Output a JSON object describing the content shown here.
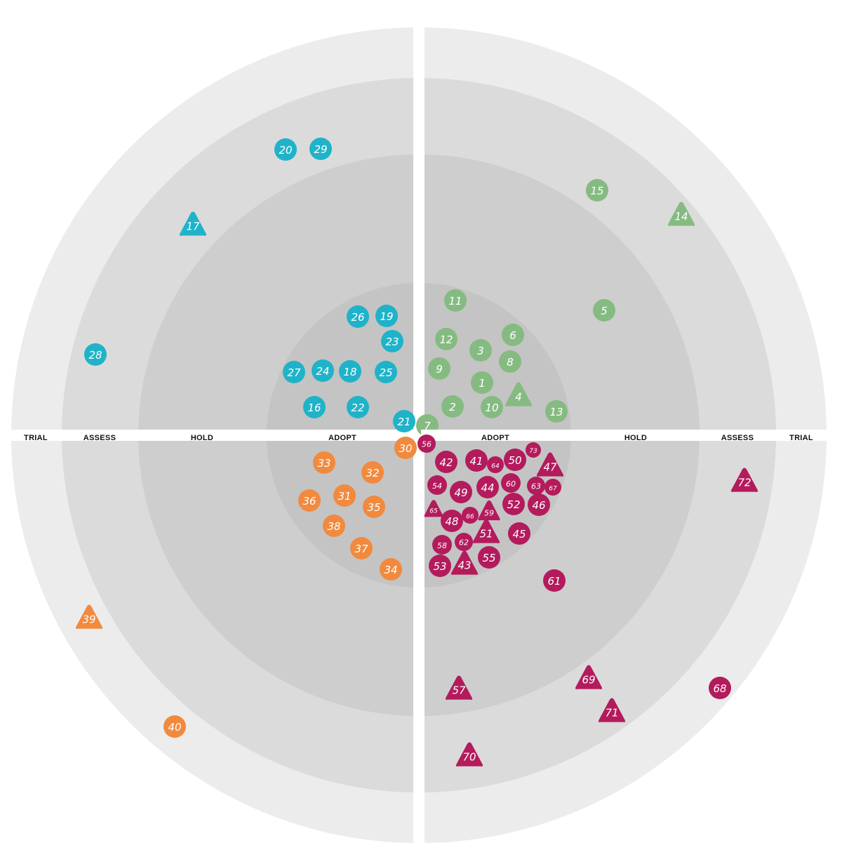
{
  "rings": [
    "ADOPT",
    "HOLD",
    "ASSESS",
    "TRIAL"
  ],
  "ring_colors": [
    "#c4c4c4",
    "#cecece",
    "#dbdbdb",
    "#ececec"
  ],
  "quadrant_colors": {
    "top_left": "#1fb3c9",
    "top_right": "#85bb81",
    "bottom_left": "#f18a3e",
    "bottom_right": "#b31b5c"
  },
  "blips": [
    {
      "n": "1",
      "q": "top_right",
      "shape": "circle"
    },
    {
      "n": "2",
      "q": "top_right",
      "shape": "circle"
    },
    {
      "n": "3",
      "q": "top_right",
      "shape": "circle"
    },
    {
      "n": "4",
      "q": "top_right",
      "shape": "triangle"
    },
    {
      "n": "5",
      "q": "top_right",
      "shape": "circle"
    },
    {
      "n": "6",
      "q": "top_right",
      "shape": "circle"
    },
    {
      "n": "7",
      "q": "top_right",
      "shape": "circle"
    },
    {
      "n": "8",
      "q": "top_right",
      "shape": "circle"
    },
    {
      "n": "9",
      "q": "top_right",
      "shape": "circle"
    },
    {
      "n": "10",
      "q": "top_right",
      "shape": "circle"
    },
    {
      "n": "11",
      "q": "top_right",
      "shape": "circle"
    },
    {
      "n": "12",
      "q": "top_right",
      "shape": "circle"
    },
    {
      "n": "13",
      "q": "top_right",
      "shape": "circle"
    },
    {
      "n": "14",
      "q": "top_right",
      "shape": "triangle"
    },
    {
      "n": "15",
      "q": "top_right",
      "shape": "circle"
    },
    {
      "n": "16",
      "q": "top_left",
      "shape": "circle"
    },
    {
      "n": "17",
      "q": "top_left",
      "shape": "triangle"
    },
    {
      "n": "18",
      "q": "top_left",
      "shape": "circle"
    },
    {
      "n": "19",
      "q": "top_left",
      "shape": "circle"
    },
    {
      "n": "20",
      "q": "top_left",
      "shape": "circle"
    },
    {
      "n": "21",
      "q": "top_left",
      "shape": "circle"
    },
    {
      "n": "22",
      "q": "top_left",
      "shape": "circle"
    },
    {
      "n": "23",
      "q": "top_left",
      "shape": "circle"
    },
    {
      "n": "24",
      "q": "top_left",
      "shape": "circle"
    },
    {
      "n": "25",
      "q": "top_left",
      "shape": "circle"
    },
    {
      "n": "26",
      "q": "top_left",
      "shape": "circle"
    },
    {
      "n": "27",
      "q": "top_left",
      "shape": "circle"
    },
    {
      "n": "28",
      "q": "top_left",
      "shape": "circle"
    },
    {
      "n": "29",
      "q": "top_left",
      "shape": "circle"
    },
    {
      "n": "30",
      "q": "bottom_left",
      "shape": "circle"
    },
    {
      "n": "31",
      "q": "bottom_left",
      "shape": "circle"
    },
    {
      "n": "32",
      "q": "bottom_left",
      "shape": "circle"
    },
    {
      "n": "33",
      "q": "bottom_left",
      "shape": "circle"
    },
    {
      "n": "34",
      "q": "bottom_left",
      "shape": "circle"
    },
    {
      "n": "35",
      "q": "bottom_left",
      "shape": "circle"
    },
    {
      "n": "36",
      "q": "bottom_left",
      "shape": "circle"
    },
    {
      "n": "37",
      "q": "bottom_left",
      "shape": "circle"
    },
    {
      "n": "38",
      "q": "bottom_left",
      "shape": "circle"
    },
    {
      "n": "39",
      "q": "bottom_left",
      "shape": "triangle"
    },
    {
      "n": "40",
      "q": "bottom_left",
      "shape": "circle"
    },
    {
      "n": "41",
      "q": "bottom_right",
      "shape": "circle"
    },
    {
      "n": "42",
      "q": "bottom_right",
      "shape": "circle"
    },
    {
      "n": "43",
      "q": "bottom_right",
      "shape": "triangle"
    },
    {
      "n": "44",
      "q": "bottom_right",
      "shape": "circle"
    },
    {
      "n": "45",
      "q": "bottom_right",
      "shape": "circle"
    },
    {
      "n": "46",
      "q": "bottom_right",
      "shape": "circle"
    },
    {
      "n": "47",
      "q": "bottom_right",
      "shape": "triangle"
    },
    {
      "n": "48",
      "q": "bottom_right",
      "shape": "circle"
    },
    {
      "n": "49",
      "q": "bottom_right",
      "shape": "circle"
    },
    {
      "n": "50",
      "q": "bottom_right",
      "shape": "circle"
    },
    {
      "n": "51",
      "q": "bottom_right",
      "shape": "triangle"
    },
    {
      "n": "52",
      "q": "bottom_right",
      "shape": "circle"
    },
    {
      "n": "53",
      "q": "bottom_right",
      "shape": "circle"
    },
    {
      "n": "54",
      "q": "bottom_right",
      "shape": "circle"
    },
    {
      "n": "55",
      "q": "bottom_right",
      "shape": "circle"
    },
    {
      "n": "56",
      "q": "bottom_right",
      "shape": "circle"
    },
    {
      "n": "57",
      "q": "bottom_right",
      "shape": "triangle"
    },
    {
      "n": "58",
      "q": "bottom_right",
      "shape": "circle"
    },
    {
      "n": "59",
      "q": "bottom_right",
      "shape": "triangle"
    },
    {
      "n": "60",
      "q": "bottom_right",
      "shape": "circle"
    },
    {
      "n": "61",
      "q": "bottom_right",
      "shape": "circle"
    },
    {
      "n": "62",
      "q": "bottom_right",
      "shape": "circle"
    },
    {
      "n": "63",
      "q": "bottom_right",
      "shape": "circle"
    },
    {
      "n": "64",
      "q": "bottom_right",
      "shape": "circle"
    },
    {
      "n": "65",
      "q": "bottom_right",
      "shape": "triangle"
    },
    {
      "n": "66",
      "q": "bottom_right",
      "shape": "circle"
    },
    {
      "n": "67",
      "q": "bottom_right",
      "shape": "circle"
    },
    {
      "n": "68",
      "q": "bottom_right",
      "shape": "circle"
    },
    {
      "n": "69",
      "q": "bottom_right",
      "shape": "triangle"
    },
    {
      "n": "70",
      "q": "bottom_right",
      "shape": "triangle"
    },
    {
      "n": "71",
      "q": "bottom_right",
      "shape": "triangle"
    },
    {
      "n": "72",
      "q": "bottom_right",
      "shape": "triangle"
    },
    {
      "n": "73",
      "q": "bottom_right",
      "shape": "circle"
    }
  ]
}
